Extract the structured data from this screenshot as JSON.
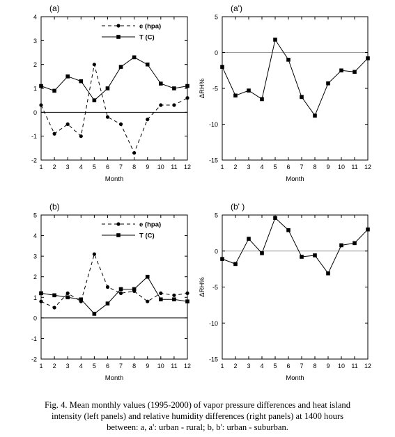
{
  "chart_data": [
    {
      "id": "a",
      "type": "line",
      "panel_label": "(a)",
      "title": "",
      "xlabel": "Month",
      "ylabel": "",
      "x": [
        1,
        2,
        3,
        4,
        5,
        6,
        7,
        8,
        9,
        10,
        11,
        12
      ],
      "xlim": [
        1,
        12
      ],
      "ylim": [
        -2,
        4
      ],
      "yticks": [
        -2,
        -1,
        0,
        1,
        2,
        3,
        4
      ],
      "grid": false,
      "zero_line": true,
      "legend": "top-right",
      "series": [
        {
          "name": "e (hpa)",
          "style": "dashed",
          "marker": "circle",
          "values": [
            0.3,
            -0.9,
            -0.5,
            -1.0,
            2.0,
            -0.2,
            -0.5,
            -1.7,
            -0.3,
            0.3,
            0.3,
            0.6
          ]
        },
        {
          "name": "T (C)",
          "style": "solid",
          "marker": "square",
          "values": [
            1.1,
            0.9,
            1.5,
            1.3,
            0.5,
            1.0,
            1.9,
            2.3,
            2.0,
            1.2,
            1.0,
            1.1
          ]
        }
      ]
    },
    {
      "id": "a_prime",
      "type": "line",
      "panel_label": "(a')",
      "title": "",
      "xlabel": "Month",
      "ylabel": "ΔRH%",
      "x": [
        1,
        2,
        3,
        4,
        5,
        6,
        7,
        8,
        9,
        10,
        11,
        12
      ],
      "xlim": [
        1,
        12
      ],
      "ylim": [
        -15,
        5
      ],
      "yticks": [
        -15,
        -10,
        -5,
        0,
        5
      ],
      "grid": false,
      "zero_line": true,
      "legend": "none",
      "series": [
        {
          "name": "",
          "style": "solid",
          "marker": "square",
          "values": [
            -2.0,
            -6.0,
            -5.3,
            -6.5,
            1.8,
            -1.0,
            -6.2,
            -8.8,
            -4.3,
            -2.5,
            -2.7,
            -0.8
          ]
        }
      ]
    },
    {
      "id": "b",
      "type": "line",
      "panel_label": "(b)",
      "title": "",
      "xlabel": "Month",
      "ylabel": "",
      "x": [
        1,
        2,
        3,
        4,
        5,
        6,
        7,
        8,
        9,
        10,
        11,
        12
      ],
      "xlim": [
        1,
        12
      ],
      "ylim": [
        -2,
        5
      ],
      "yticks": [
        -2,
        -1,
        0,
        1,
        2,
        3,
        4,
        5
      ],
      "grid": false,
      "zero_line": true,
      "legend": "top-right",
      "series": [
        {
          "name": "e (hpa)",
          "style": "dashed",
          "marker": "circle",
          "values": [
            0.8,
            0.5,
            1.2,
            0.8,
            3.1,
            1.5,
            1.2,
            1.3,
            0.8,
            1.2,
            1.1,
            1.2
          ]
        },
        {
          "name": "T (C)",
          "style": "solid",
          "marker": "square",
          "values": [
            1.2,
            1.1,
            1.0,
            0.9,
            0.2,
            0.7,
            1.4,
            1.4,
            2.0,
            0.9,
            0.9,
            0.8
          ]
        }
      ]
    },
    {
      "id": "b_prime",
      "type": "line",
      "panel_label": "(b' )",
      "title": "",
      "xlabel": "Month",
      "ylabel": "ΔRH%",
      "x": [
        1,
        2,
        3,
        4,
        5,
        6,
        7,
        8,
        9,
        10,
        11,
        12
      ],
      "xlim": [
        1,
        12
      ],
      "ylim": [
        -15,
        5
      ],
      "yticks": [
        -15,
        -10,
        -5,
        0,
        5
      ],
      "grid": false,
      "zero_line": true,
      "legend": "none",
      "series": [
        {
          "name": "",
          "style": "solid",
          "marker": "square",
          "values": [
            -1.1,
            -1.8,
            1.7,
            -0.3,
            4.6,
            2.9,
            -0.8,
            -0.6,
            -3.1,
            0.8,
            1.1,
            3.0
          ]
        }
      ]
    }
  ],
  "caption": {
    "line1": "Fig. 4. Mean monthly values (1995-2000) of vapor pressure differences and heat island",
    "line2": "intensity (left panels) and relative humidity differences (right panels) at 1400 hours",
    "line3": "between: a, a': urban - rural; b, b': urban - suburban."
  }
}
